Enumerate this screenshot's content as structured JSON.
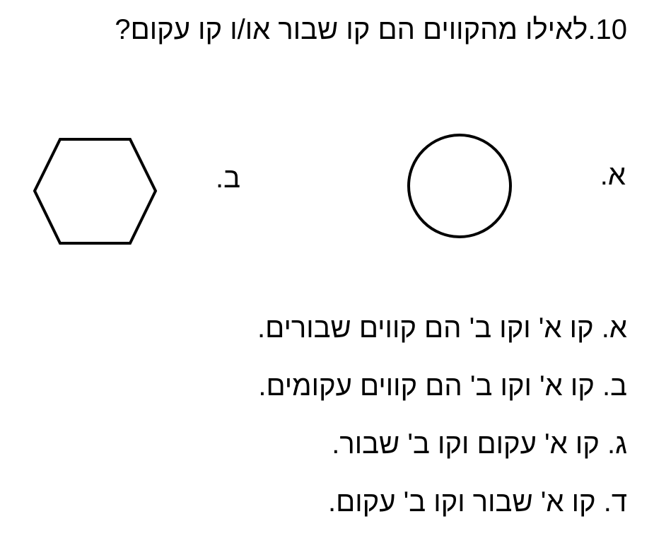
{
  "question": {
    "title": "10.לאילו מהקווים הם קו שבור או/ו קו עקום?"
  },
  "figures": {
    "a_label": "א.",
    "b_label": "ב."
  },
  "options": [
    "א. קו א' וקו ב' הם קווים שבורים.",
    "ב. קו א' וקו ב' הם קווים עקומים.",
    "ג. קו א' עקום וקו ב' שבור.",
    "ד. קו א' שבור וקו ב' עקום."
  ],
  "colors": {
    "stroke": "#000000",
    "background": "#ffffff"
  }
}
